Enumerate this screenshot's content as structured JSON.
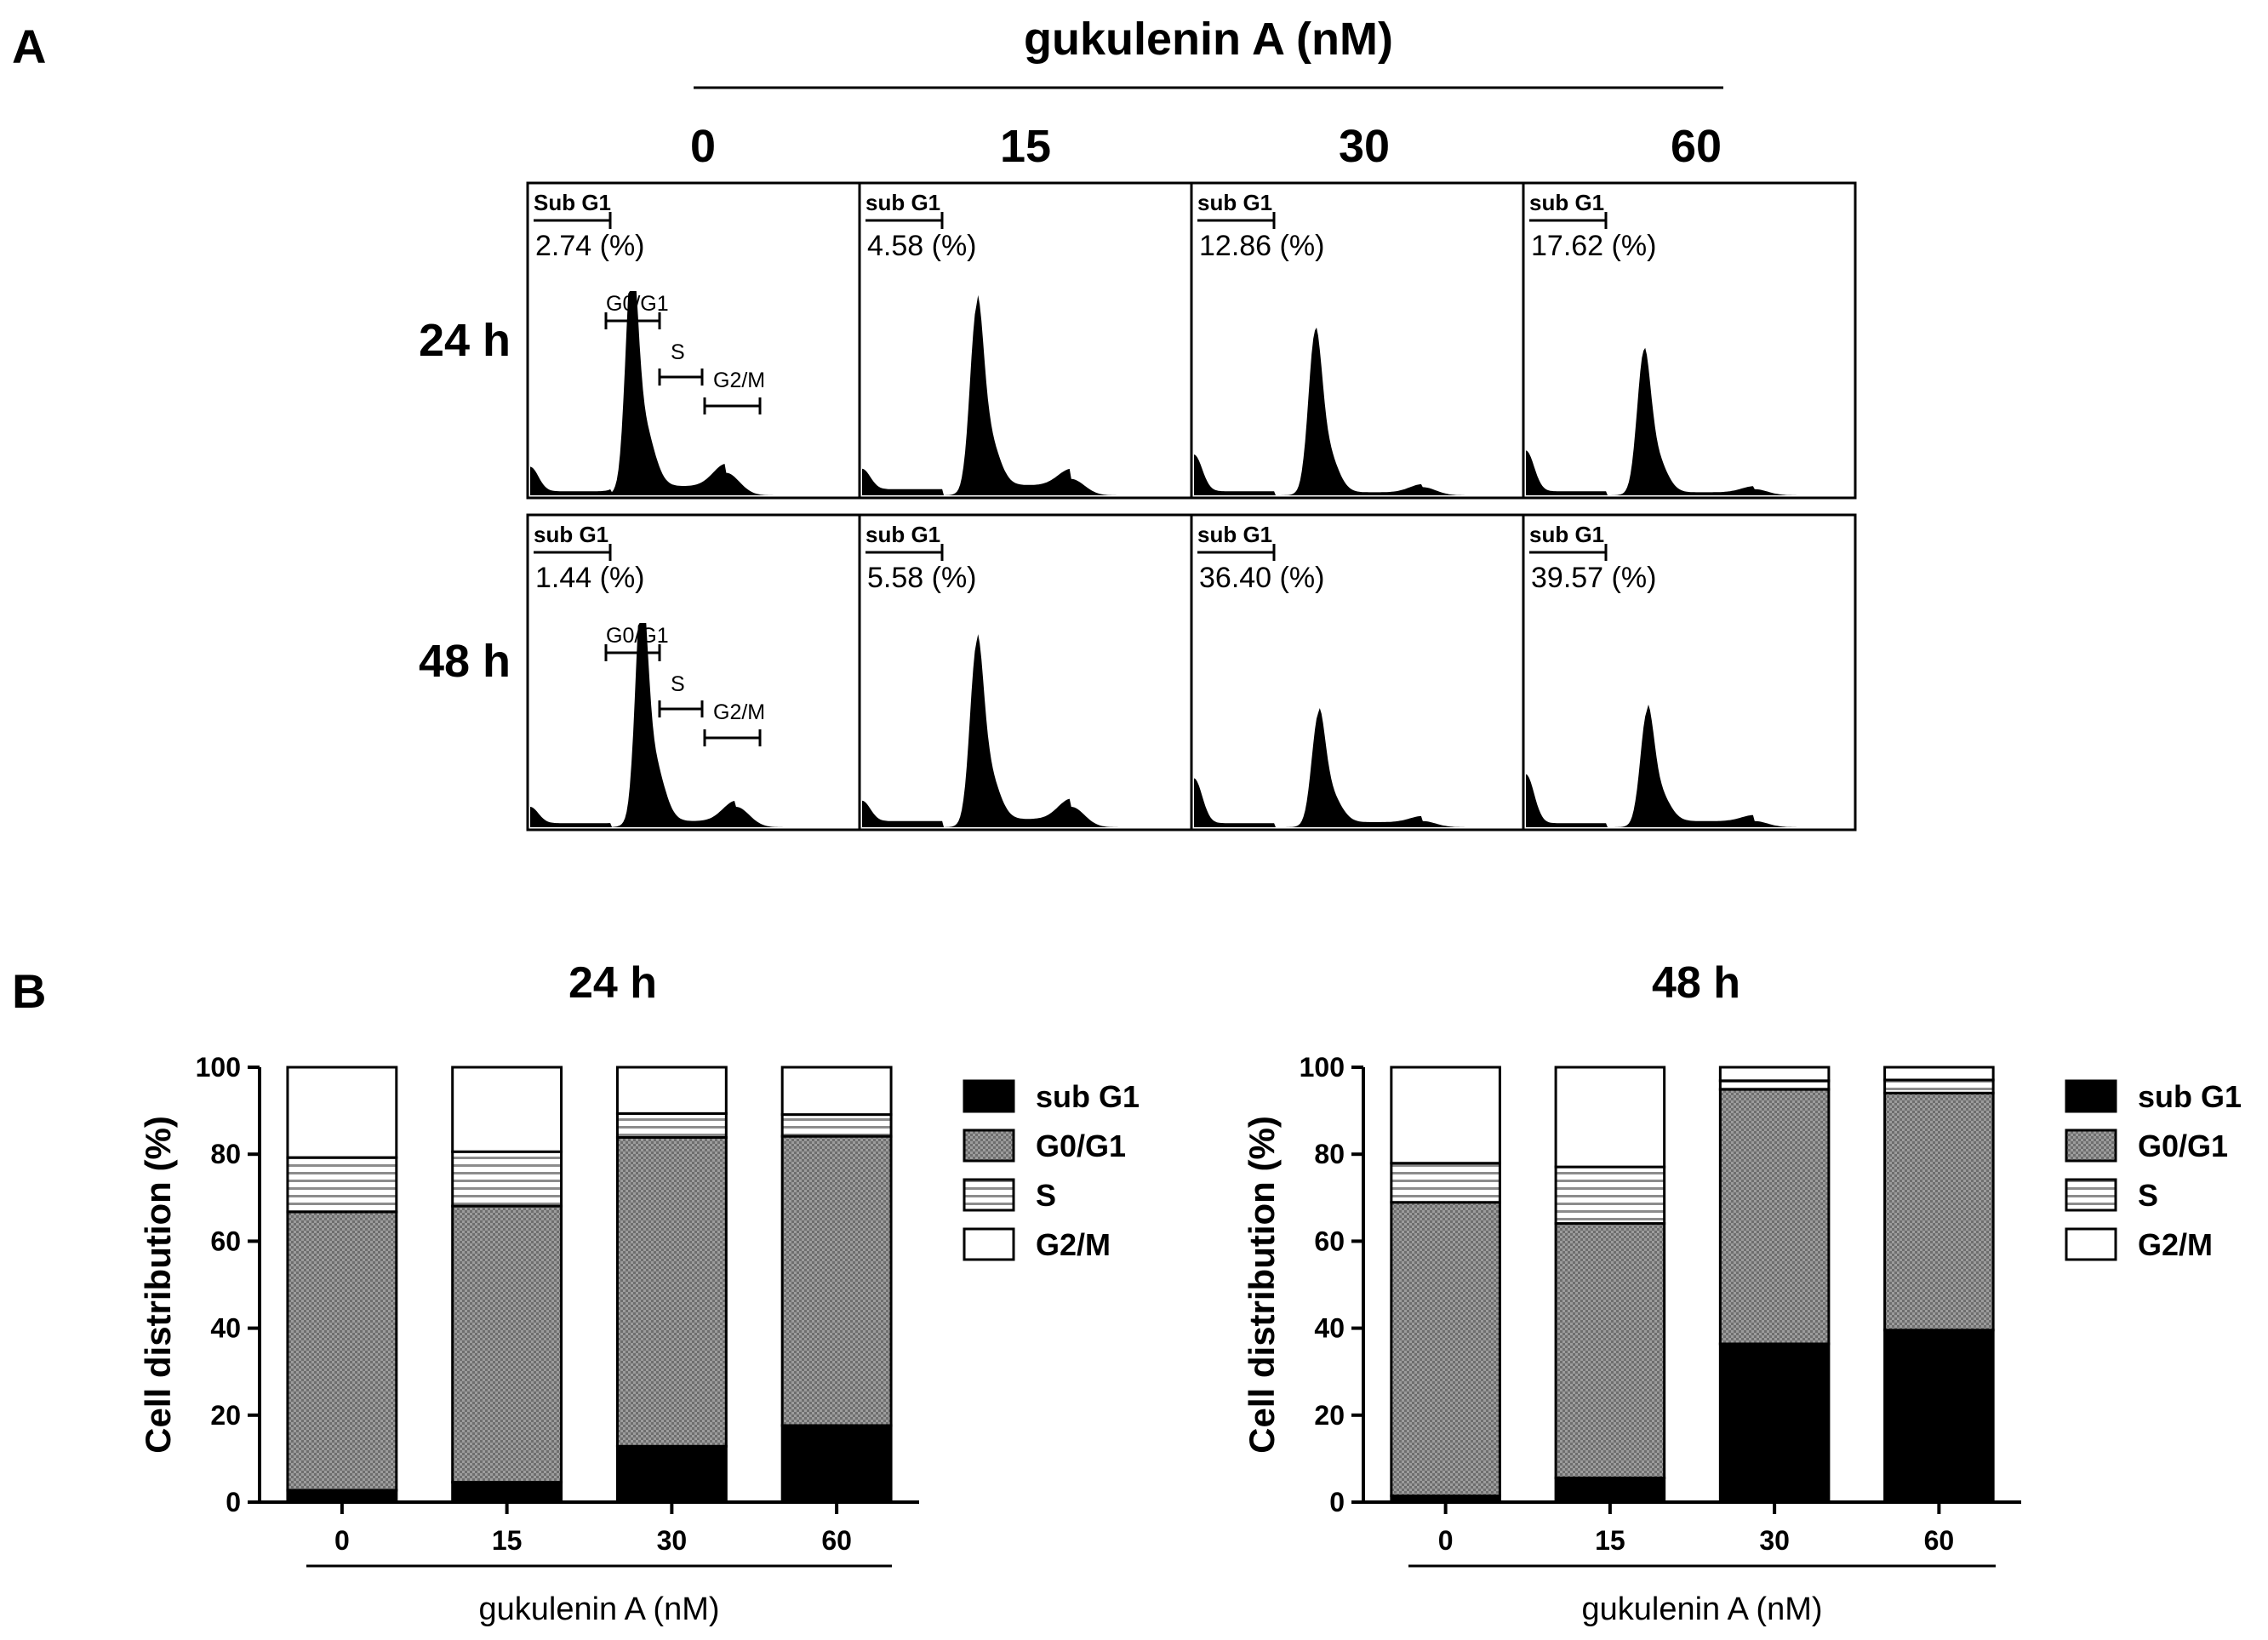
{
  "panel_a": {
    "letter": "A",
    "dose_title": "gukulenin A (nM)",
    "doses": [
      "0",
      "15",
      "30",
      "60"
    ],
    "rows": [
      {
        "time": "24 h",
        "cells": [
          {
            "gate_label": "Sub G1",
            "value": "2.74",
            "unit": "(%)",
            "phase_gates": true
          },
          {
            "gate_label": "sub G1",
            "value": "4.58",
            "unit": "(%)",
            "phase_gates": false
          },
          {
            "gate_label": "sub G1",
            "value": "12.86",
            "unit": "(%)",
            "phase_gates": false
          },
          {
            "gate_label": "sub G1",
            "value": "17.62",
            "unit": "(%)",
            "phase_gates": false
          }
        ]
      },
      {
        "time": "48 h",
        "cells": [
          {
            "gate_label": "sub G1",
            "value": "1.44",
            "unit": "(%)",
            "phase_gates": true
          },
          {
            "gate_label": "sub G1",
            "value": "5.58",
            "unit": "(%)",
            "phase_gates": false
          },
          {
            "gate_label": "sub G1",
            "value": "36.40",
            "unit": "(%)",
            "phase_gates": false
          },
          {
            "gate_label": "sub G1",
            "value": "39.57",
            "unit": "(%)",
            "phase_gates": false
          }
        ]
      }
    ],
    "phase_gate_labels": {
      "g0g1": "G0/G1",
      "s": "S",
      "g2m": "G2/M"
    }
  },
  "panel_b": {
    "letter": "B"
  },
  "chart_data": [
    {
      "type": "bar",
      "stacked": true,
      "title": "24 h",
      "xlabel": "gukulenin A (nM)",
      "ylabel": "Cell distribution (%)",
      "ylim": [
        0,
        100
      ],
      "yticks": [
        "0",
        "20",
        "40",
        "60",
        "80",
        "100"
      ],
      "categories": [
        "0",
        "15",
        "30",
        "60"
      ],
      "series": [
        {
          "name": "sub G1",
          "values": [
            2.74,
            4.58,
            12.86,
            17.62
          ]
        },
        {
          "name": "G0/G1",
          "values": [
            64,
            63.5,
            71,
            66.5
          ]
        },
        {
          "name": "S",
          "values": [
            12.5,
            12.5,
            5.5,
            5
          ]
        },
        {
          "name": "G2/M",
          "values": [
            20.76,
            19.42,
            10.64,
            10.88
          ]
        }
      ],
      "legend": [
        "sub G1",
        "G0/G1",
        "S",
        "G2/M"
      ],
      "legend_position": "right"
    },
    {
      "type": "bar",
      "stacked": true,
      "title": "48 h",
      "xlabel": "gukulenin A (nM)",
      "ylabel": "Cell distribution (%)",
      "ylim": [
        0,
        100
      ],
      "yticks": [
        "0",
        "20",
        "40",
        "60",
        "80",
        "100"
      ],
      "categories": [
        "0",
        "15",
        "30",
        "60"
      ],
      "series": [
        {
          "name": "sub G1",
          "values": [
            1.44,
            5.58,
            36.4,
            39.57
          ]
        },
        {
          "name": "G0/G1",
          "values": [
            67.5,
            58.5,
            58.5,
            54.5
          ]
        },
        {
          "name": "S",
          "values": [
            9,
            13,
            2,
            3
          ]
        },
        {
          "name": "G2/M",
          "values": [
            22.06,
            22.92,
            3.1,
            2.93
          ]
        }
      ],
      "legend": [
        "sub G1",
        "G0/G1",
        "S",
        "G2/M"
      ],
      "legend_position": "right"
    }
  ],
  "colors": {
    "ink": "#000000",
    "paper": "#ffffff",
    "g0g1_fill": "#8a8a8a",
    "s_stripe": "#9a9a9a"
  }
}
